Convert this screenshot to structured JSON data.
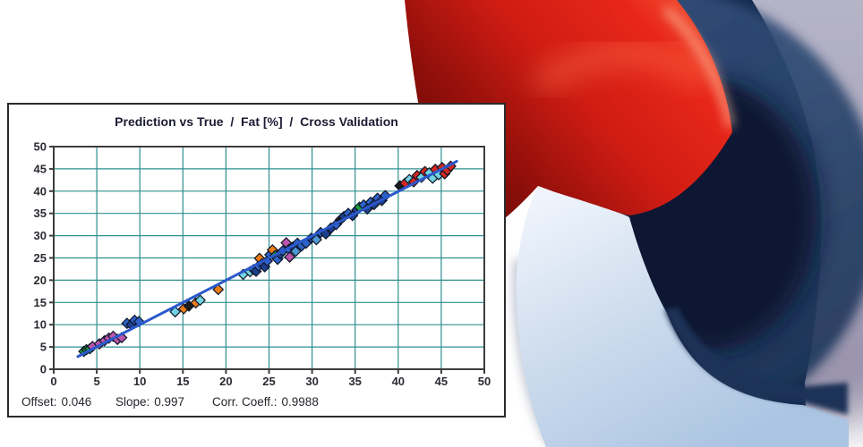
{
  "window": {
    "background": "#ffffff"
  },
  "chart_panel": {
    "title": "Prediction vs True  /  Fat [%]  /  Cross Validation",
    "stats": {
      "offset_label": "Offset:",
      "offset_value": "0.046",
      "slope_label": "Slope:",
      "slope_value": "0.997",
      "corr_label": "Corr. Coeff.:",
      "corr_value": "0.9988"
    }
  },
  "chart_data": {
    "type": "scatter",
    "title": "Prediction vs True / Fat [%] / Cross Validation",
    "xlabel": "",
    "ylabel": "",
    "xlim": [
      0,
      50
    ],
    "ylim": [
      0,
      50
    ],
    "x_ticks": [
      0,
      5,
      10,
      15,
      20,
      25,
      30,
      35,
      40,
      45,
      50
    ],
    "y_ticks": [
      0,
      5,
      10,
      15,
      20,
      25,
      30,
      35,
      40,
      45,
      50
    ],
    "grid": true,
    "grid_color": "#2f8f8f",
    "axis_color": "#3d3d3d",
    "label_color": "#2b2b33",
    "legend": "none",
    "regression": {
      "offset": 0.046,
      "slope": 0.997,
      "corr_coeff": 0.9988,
      "line_color": "#2b59cc",
      "x_start": 2.8,
      "x_end": 46.8
    },
    "marker": {
      "shape": "diamond",
      "half_size": 5.6,
      "edge_color": "#0e1526"
    },
    "palette": {
      "green": "#1f9e40",
      "darkgreen": "#14732c",
      "magenta": "#bb55ab",
      "blue": "#2e62c8",
      "navy": "#1d3f8f",
      "cyan": "#72d2e2",
      "orange": "#ea7c18",
      "red": "#d22721",
      "black": "#1b1b1b",
      "lightblue": "#4f99d3"
    },
    "points": [
      [
        3.5,
        4.0,
        "green"
      ],
      [
        3.8,
        4.4,
        "darkgreen"
      ],
      [
        4.2,
        4.6,
        "green"
      ],
      [
        4.5,
        5.1,
        "magenta"
      ],
      [
        5.3,
        5.7,
        "magenta"
      ],
      [
        5.9,
        6.4,
        "magenta"
      ],
      [
        6.4,
        7.0,
        "magenta"
      ],
      [
        6.9,
        7.4,
        "magenta"
      ],
      [
        7.4,
        6.7,
        "magenta"
      ],
      [
        7.9,
        7.1,
        "magenta"
      ],
      [
        8.5,
        10.3,
        "blue"
      ],
      [
        9.0,
        10.0,
        "navy"
      ],
      [
        9.4,
        11.0,
        "blue"
      ],
      [
        9.9,
        10.7,
        "blue"
      ],
      [
        14.1,
        12.9,
        "cyan"
      ],
      [
        15.1,
        13.6,
        "orange"
      ],
      [
        15.7,
        14.2,
        "black"
      ],
      [
        16.5,
        14.9,
        "orange"
      ],
      [
        17.0,
        15.5,
        "cyan"
      ],
      [
        19.1,
        17.9,
        "orange"
      ],
      [
        22.0,
        21.3,
        "cyan"
      ],
      [
        22.8,
        21.9,
        "cyan"
      ],
      [
        23.2,
        22.4,
        "blue"
      ],
      [
        23.5,
        22.0,
        "navy"
      ],
      [
        23.8,
        23.2,
        "blue"
      ],
      [
        23.9,
        24.9,
        "orange"
      ],
      [
        24.2,
        23.7,
        "blue"
      ],
      [
        24.5,
        23.0,
        "navy"
      ],
      [
        24.8,
        24.3,
        "blue"
      ],
      [
        25.1,
        25.7,
        "blue"
      ],
      [
        25.4,
        26.8,
        "orange"
      ],
      [
        25.7,
        25.5,
        "green"
      ],
      [
        26.0,
        24.7,
        "blue"
      ],
      [
        26.3,
        25.9,
        "navy"
      ],
      [
        26.6,
        26.6,
        "blue"
      ],
      [
        27.0,
        28.4,
        "magenta"
      ],
      [
        27.3,
        26.9,
        "blue"
      ],
      [
        27.4,
        25.2,
        "magenta"
      ],
      [
        27.8,
        27.5,
        "navy"
      ],
      [
        28.1,
        26.5,
        "lightblue"
      ],
      [
        28.3,
        28.3,
        "blue"
      ],
      [
        28.8,
        27.7,
        "blue"
      ],
      [
        29.3,
        28.3,
        "blue"
      ],
      [
        29.9,
        29.4,
        "navy"
      ],
      [
        30.5,
        29.1,
        "lightblue"
      ],
      [
        31.0,
        30.7,
        "blue"
      ],
      [
        31.6,
        30.4,
        "navy"
      ],
      [
        32.2,
        31.7,
        "navy"
      ],
      [
        32.8,
        32.5,
        "blue"
      ],
      [
        33.3,
        33.6,
        "black"
      ],
      [
        33.7,
        34.3,
        "navy"
      ],
      [
        34.2,
        35.0,
        "blue"
      ],
      [
        34.7,
        34.5,
        "navy"
      ],
      [
        35.2,
        35.8,
        "navy"
      ],
      [
        35.5,
        36.4,
        "green"
      ],
      [
        36.0,
        36.9,
        "blue"
      ],
      [
        36.4,
        36.0,
        "navy"
      ],
      [
        36.8,
        37.5,
        "blue"
      ],
      [
        37.2,
        37.0,
        "navy"
      ],
      [
        37.6,
        38.4,
        "blue"
      ],
      [
        38.1,
        37.9,
        "navy"
      ],
      [
        38.5,
        39.0,
        "blue"
      ],
      [
        40.2,
        41.2,
        "black"
      ],
      [
        40.8,
        41.8,
        "red"
      ],
      [
        41.3,
        42.6,
        "cyan"
      ],
      [
        41.8,
        42.1,
        "red"
      ],
      [
        42.2,
        43.5,
        "red"
      ],
      [
        42.7,
        43.1,
        "cyan"
      ],
      [
        43.1,
        44.4,
        "red"
      ],
      [
        43.6,
        44.1,
        "cyan"
      ],
      [
        44.0,
        42.9,
        "cyan"
      ],
      [
        44.3,
        44.9,
        "red"
      ],
      [
        44.7,
        43.7,
        "cyan"
      ],
      [
        45.1,
        45.3,
        "red"
      ],
      [
        45.4,
        43.9,
        "red"
      ],
      [
        45.7,
        44.7,
        "red"
      ],
      [
        46.1,
        45.6,
        "red"
      ]
    ]
  },
  "logo": {
    "name": "quant-q-swirl-logo",
    "red": "#d81e14",
    "dark_navy": "#0c1a34",
    "steel_navy": "#2c4c78",
    "light_blue": "#c9d9ee",
    "lavender": "#a7a7bd"
  }
}
